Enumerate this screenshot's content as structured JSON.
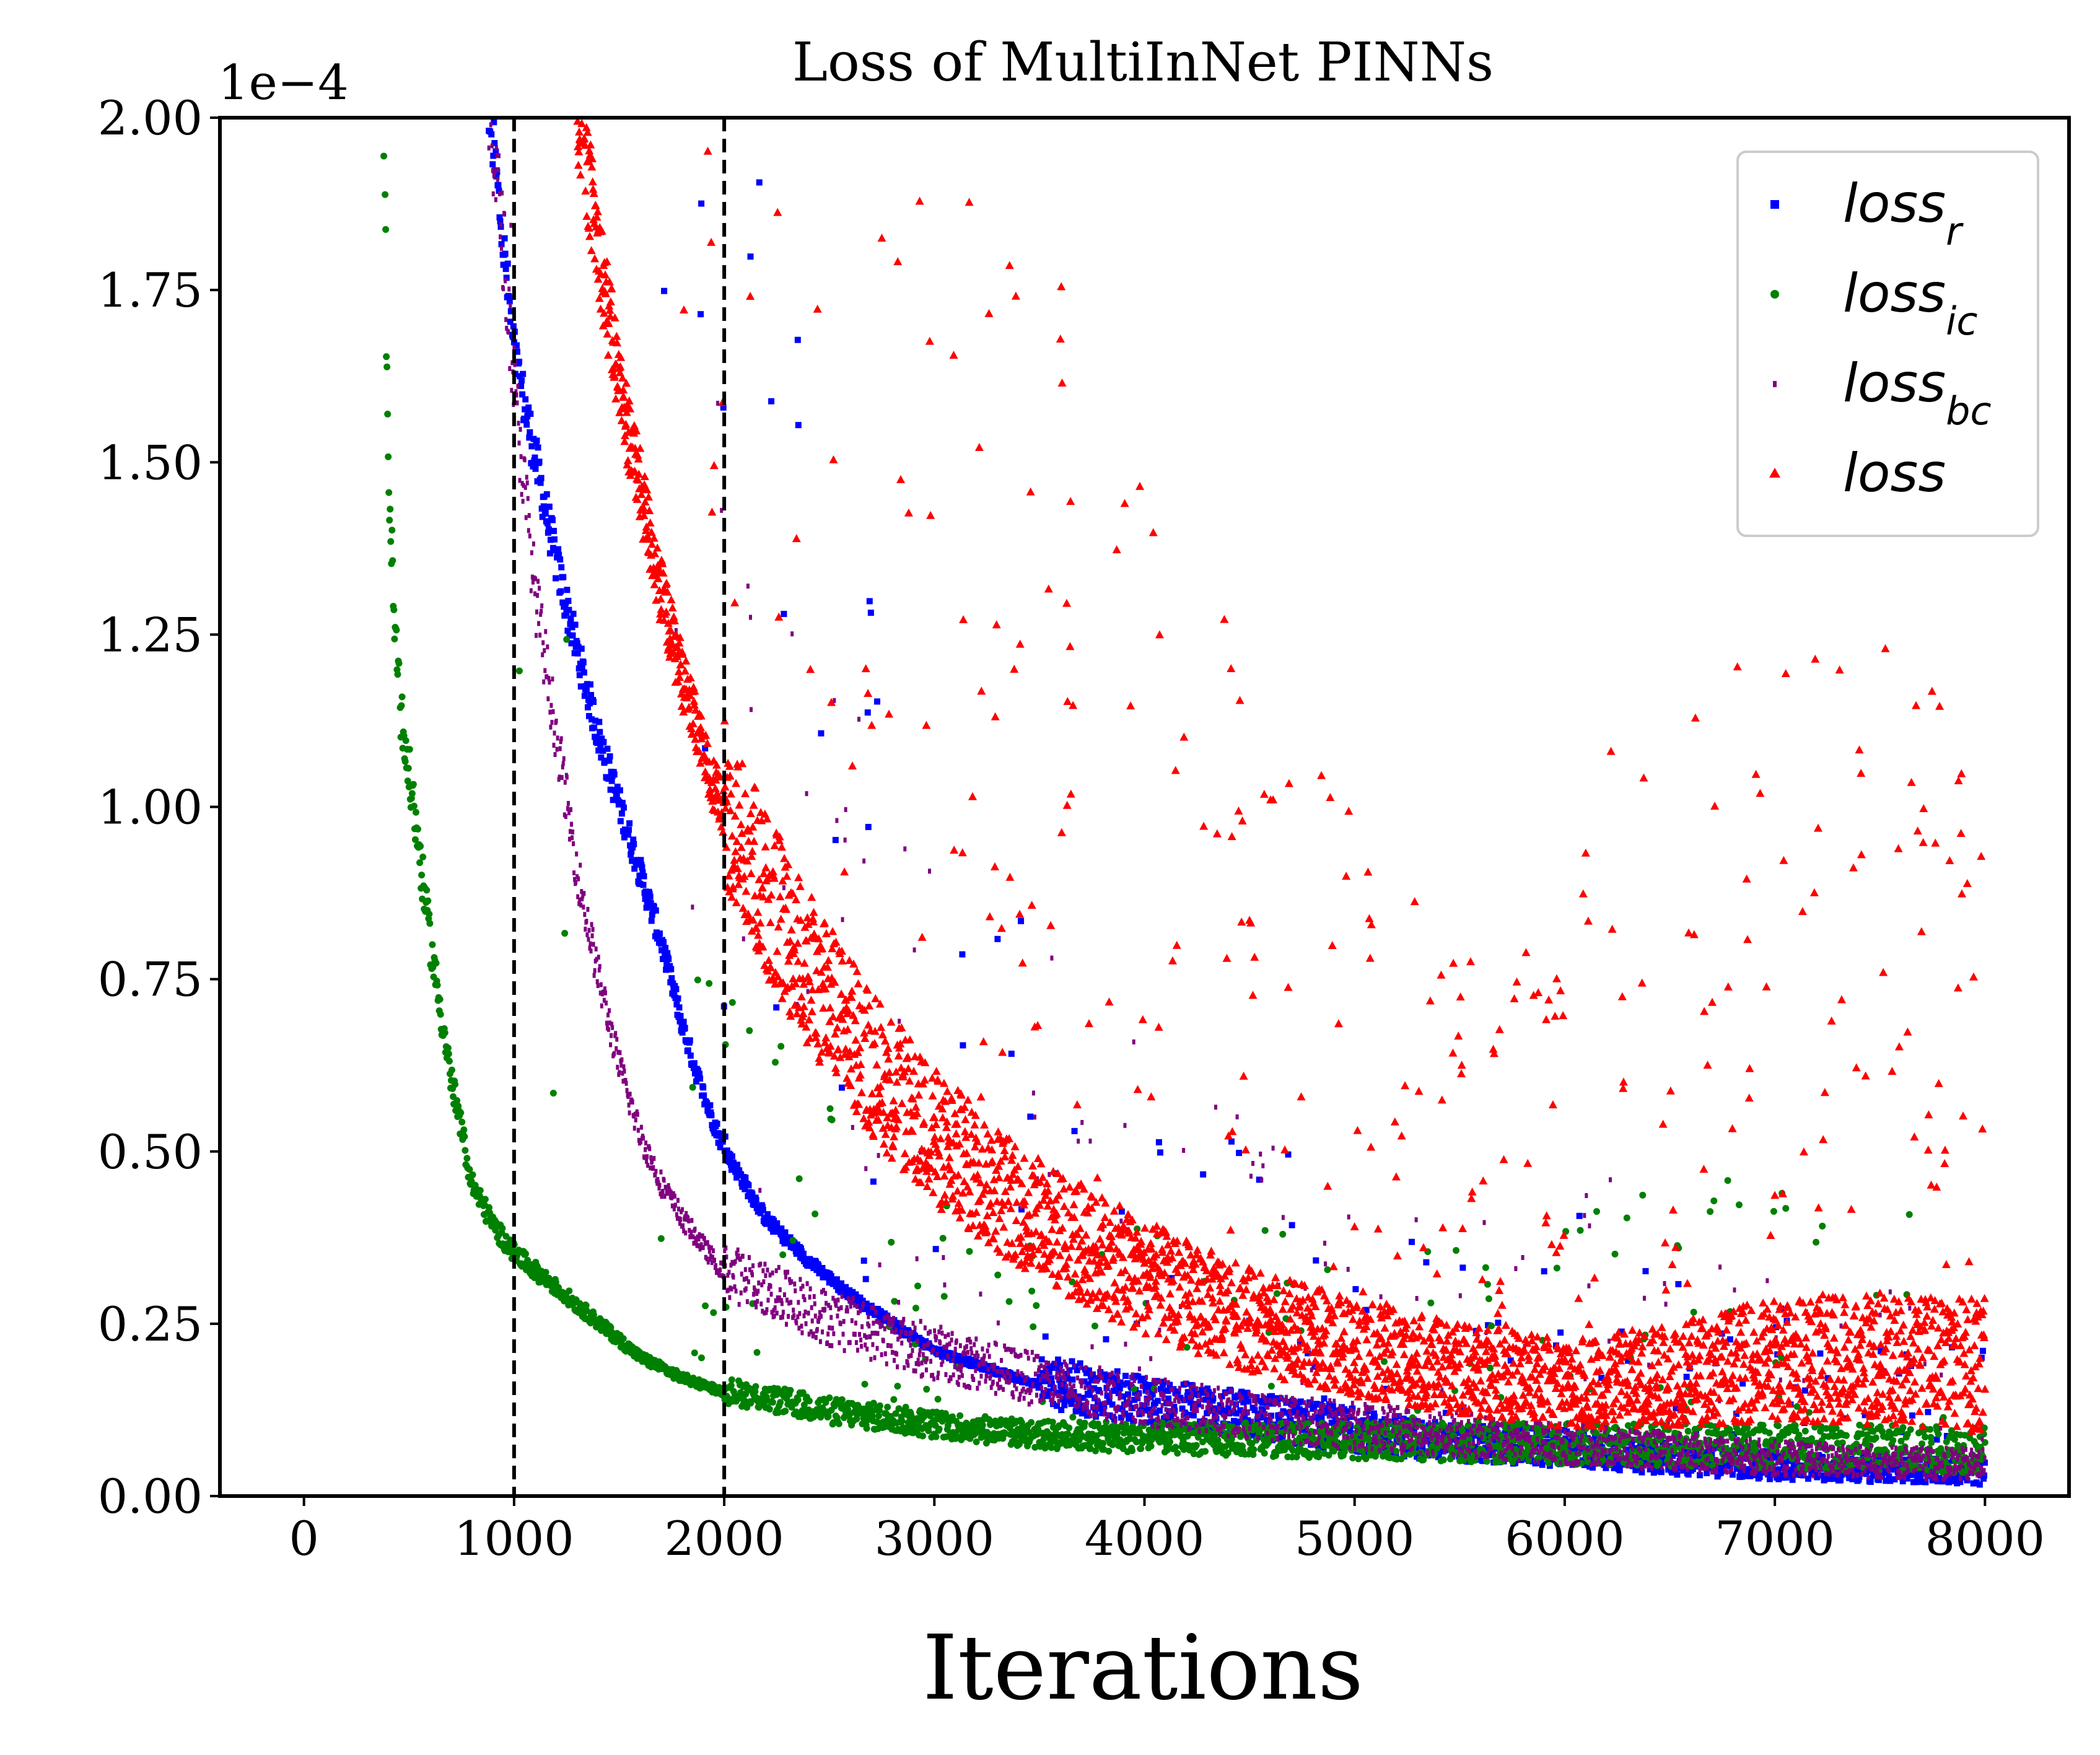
{
  "chart_data": {
    "type": "scatter",
    "title": "Loss of MultiInNet PINNs",
    "xlabel": "Iterations",
    "ylabel": "",
    "y_offset_text": "1e−4",
    "xlim": [
      -400,
      8400
    ],
    "ylim": [
      0,
      0.0002
    ],
    "x_ticks": [
      0,
      1000,
      2000,
      3000,
      4000,
      5000,
      6000,
      7000,
      8000
    ],
    "x_tick_labels": [
      "0",
      "1000",
      "2000",
      "3000",
      "4000",
      "5000",
      "6000",
      "7000",
      "8000"
    ],
    "y_ticks": [
      0,
      2.5e-05,
      5e-05,
      7.5e-05,
      0.0001,
      0.000125,
      0.00015,
      0.000175,
      0.0002
    ],
    "y_tick_labels": [
      "0.00",
      "0.25",
      "0.50",
      "0.75",
      "1.00",
      "1.25",
      "1.50",
      "1.75",
      "2.00"
    ],
    "vertical_lines": [
      1000,
      2000
    ],
    "vertical_line_style": "dashed",
    "vertical_line_color": "#000000",
    "grid": false,
    "legend_position": "upper right",
    "series": [
      {
        "key": "loss_r",
        "name": "loss",
        "subscript": "r",
        "color": "#0000ff",
        "marker": "square",
        "points": [
          [
            850,
            0.00021
          ],
          [
            900,
            0.000195
          ],
          [
            950,
            0.00018
          ],
          [
            1000,
            0.000165
          ],
          [
            1100,
            0.00015
          ],
          [
            1200,
            0.000135
          ],
          [
            1300,
            0.000122
          ],
          [
            1400,
            0.00011
          ],
          [
            1500,
            0.0001
          ],
          [
            1600,
            9e-05
          ],
          [
            1700,
            8e-05
          ],
          [
            1800,
            6.8e-05
          ],
          [
            1900,
            5.8e-05
          ],
          [
            2000,
            5e-05
          ],
          [
            2200,
            4e-05
          ],
          [
            2400,
            3.4e-05
          ],
          [
            2600,
            2.9e-05
          ],
          [
            2800,
            2.5e-05
          ],
          [
            3000,
            2.1e-05
          ],
          [
            3200,
            1.9e-05
          ],
          [
            3500,
            1.6e-05
          ],
          [
            4000,
            1.3e-05
          ],
          [
            4500,
            1.1e-05
          ],
          [
            5000,
            9e-06
          ],
          [
            5500,
            7e-06
          ],
          [
            6000,
            6.5e-06
          ],
          [
            6500,
            5e-06
          ],
          [
            7000,
            4e-06
          ],
          [
            7500,
            3.5e-06
          ],
          [
            8000,
            3e-06
          ]
        ]
      },
      {
        "key": "loss_ic",
        "name": "loss",
        "subscript": "ic",
        "color": "#008000",
        "marker": "circle",
        "points": [
          [
            380,
            0.0002
          ],
          [
            400,
            0.00015
          ],
          [
            430,
            0.000125
          ],
          [
            470,
            0.00011
          ],
          [
            520,
            0.0001
          ],
          [
            600,
            8e-05
          ],
          [
            700,
            6e-05
          ],
          [
            800,
            4.5e-05
          ],
          [
            900,
            3.9e-05
          ],
          [
            1000,
            3.5e-05
          ],
          [
            1200,
            3e-05
          ],
          [
            1400,
            2.5e-05
          ],
          [
            1600,
            2e-05
          ],
          [
            1800,
            1.7e-05
          ],
          [
            2000,
            1.5e-05
          ],
          [
            2500,
            1.2e-05
          ],
          [
            3000,
            1e-05
          ],
          [
            3500,
            8.5e-06
          ],
          [
            4000,
            8e-06
          ],
          [
            5000,
            7.5e-06
          ],
          [
            6000,
            7e-06
          ],
          [
            7000,
            6.5e-06
          ],
          [
            8000,
            6e-06
          ]
        ]
      },
      {
        "key": "loss_bc",
        "name": "loss",
        "subscript": "bc",
        "color": "#800080",
        "marker": "point",
        "points": [
          [
            880,
            0.0002
          ],
          [
            950,
            0.00018
          ],
          [
            1000,
            0.00016
          ],
          [
            1100,
            0.00013
          ],
          [
            1200,
            0.00011
          ],
          [
            1300,
            9e-05
          ],
          [
            1400,
            7.5e-05
          ],
          [
            1500,
            6.2e-05
          ],
          [
            1600,
            5.2e-05
          ],
          [
            1700,
            4.5e-05
          ],
          [
            1800,
            4e-05
          ],
          [
            1900,
            3.6e-05
          ],
          [
            2000,
            3.2e-05
          ],
          [
            2500,
            2.5e-05
          ],
          [
            3000,
            2e-05
          ],
          [
            3500,
            1.6e-05
          ],
          [
            4000,
            1.3e-05
          ],
          [
            4500,
            1.1e-05
          ],
          [
            5000,
            9.5e-06
          ],
          [
            6000,
            7e-06
          ],
          [
            7000,
            5e-06
          ],
          [
            8000,
            4e-06
          ]
        ]
      },
      {
        "key": "loss",
        "name": "loss",
        "subscript": "",
        "color": "#ff0000",
        "marker": "triangle",
        "points": [
          [
            1300,
            0.0002
          ],
          [
            1400,
            0.00018
          ],
          [
            1500,
            0.00016
          ],
          [
            1600,
            0.000145
          ],
          [
            1700,
            0.00013
          ],
          [
            1800,
            0.000118
          ],
          [
            1900,
            0.000107
          ],
          [
            2000,
            9.8e-05
          ],
          [
            2200,
            8.5e-05
          ],
          [
            2400,
            7.4e-05
          ],
          [
            2600,
            6.5e-05
          ],
          [
            2800,
            5.7e-05
          ],
          [
            3000,
            5e-05
          ],
          [
            3200,
            4.5e-05
          ],
          [
            3500,
            3.8e-05
          ],
          [
            4000,
            3e-05
          ],
          [
            4500,
            2.4e-05
          ],
          [
            5000,
            2e-05
          ],
          [
            5500,
            1.7e-05
          ],
          [
            5800,
            1.6e-05
          ],
          [
            6000,
            1.5e-05
          ],
          [
            6500,
            1.6e-05
          ],
          [
            7000,
            1.8e-05
          ],
          [
            7500,
            1.8e-05
          ],
          [
            8000,
            1.7e-05
          ]
        ]
      }
    ]
  }
}
